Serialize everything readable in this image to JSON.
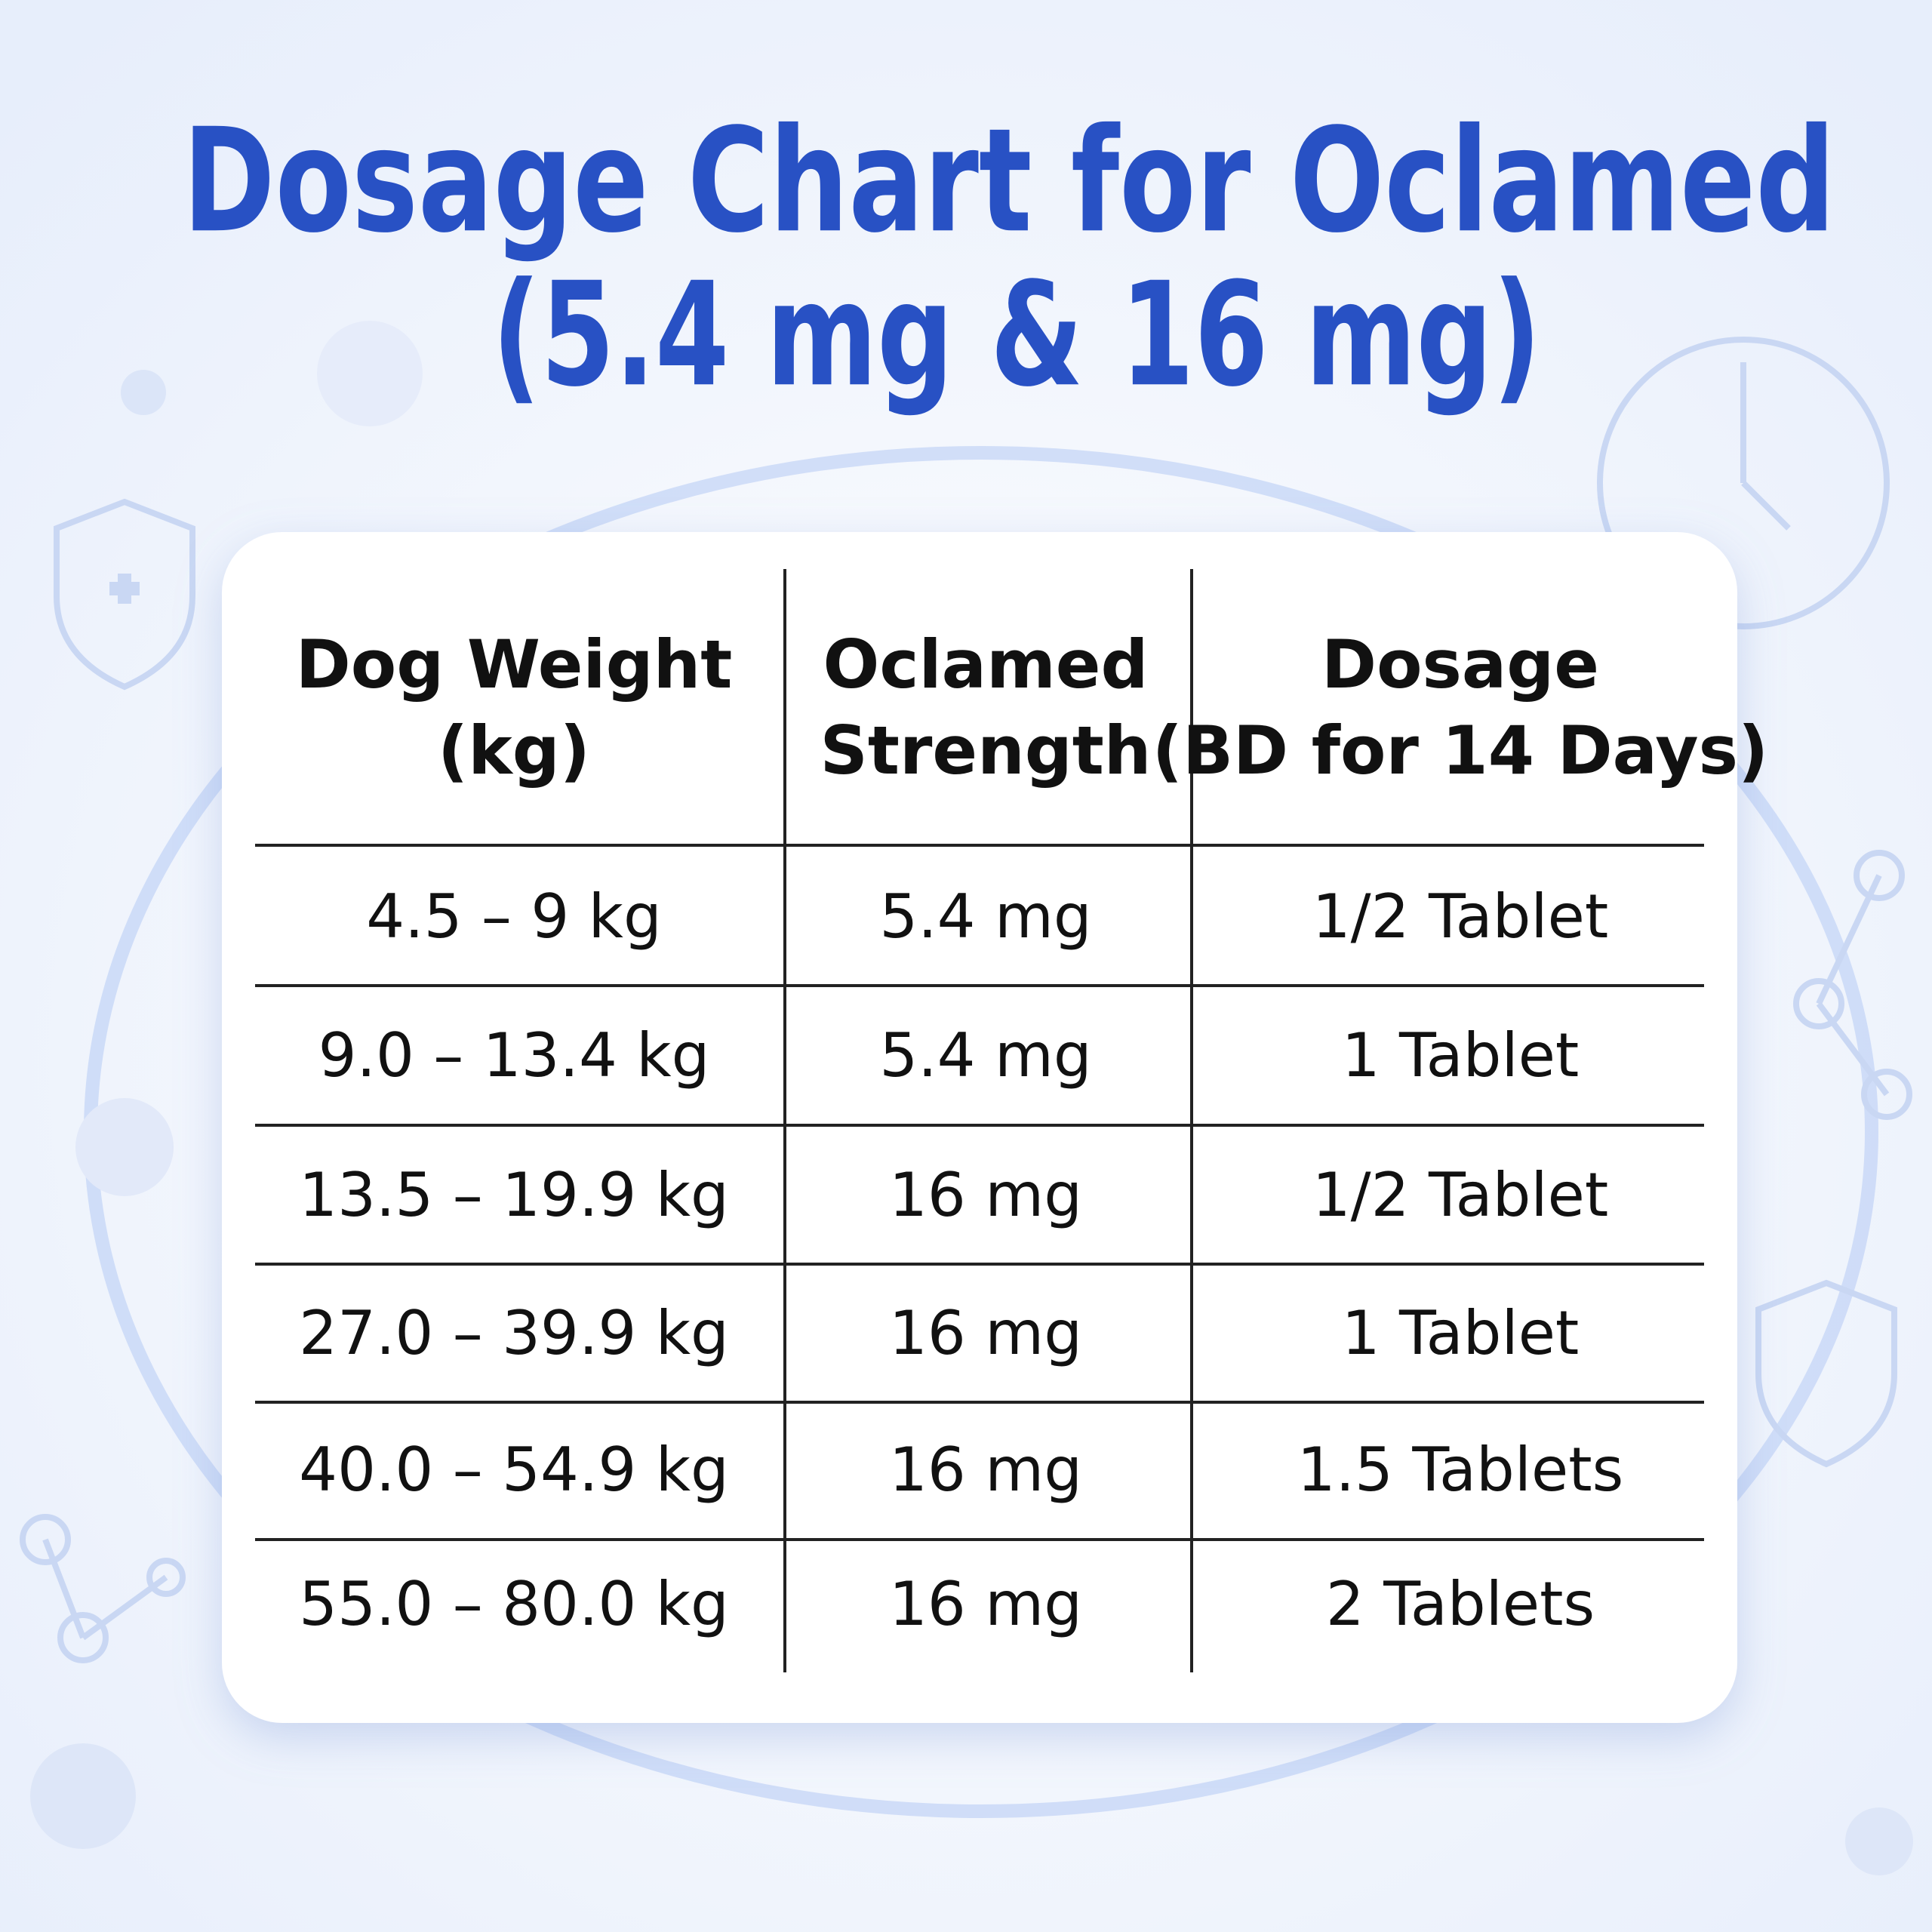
{
  "header": {
    "title_lines": [
      "Dosage Chart for Oclamed",
      "(5.4 mg & 16 mg)"
    ]
  },
  "table": {
    "columns": [
      [
        "Dog Weight",
        "(kg)"
      ],
      [
        "Oclamed",
        "Strength"
      ],
      [
        "Dosage",
        "(BD for 14 Days)"
      ]
    ],
    "rows": [
      [
        "4.5 –  9 kg",
        "5.4 mg",
        "1/2 Tablet"
      ],
      [
        "9.0 – 13.4 kg",
        "5.4 mg",
        "1 Tablet"
      ],
      [
        "13.5 – 19.9 kg",
        "16 mg",
        "1/2 Tablet"
      ],
      [
        "27.0 – 39.9 kg",
        "16 mg",
        "1 Tablet"
      ],
      [
        "40.0 – 54.9 kg",
        "16 mg",
        "1.5 Tablets"
      ],
      [
        "55.0 – 80.0 kg",
        "16 mg",
        "2 Tablets"
      ]
    ]
  }
}
